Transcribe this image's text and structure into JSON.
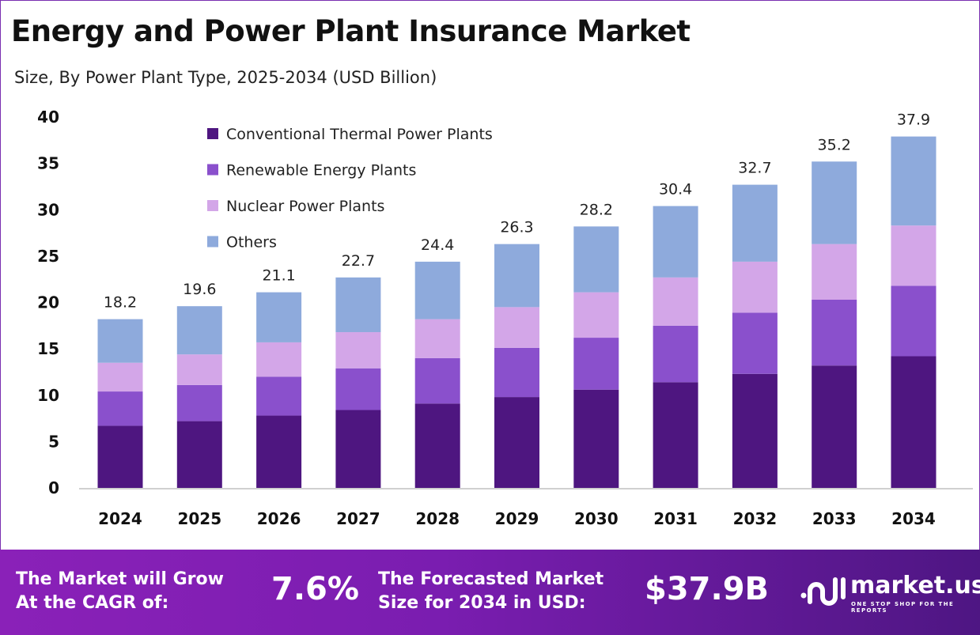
{
  "title": "Energy and Power Plant Insurance Market",
  "subtitle": "Size, By Power Plant Type, 2025-2034 (USD Billion)",
  "chart_data": {
    "type": "bar",
    "stacked": true,
    "categories": [
      "2024",
      "2025",
      "2026",
      "2027",
      "2028",
      "2029",
      "2030",
      "2031",
      "2032",
      "2033",
      "2034"
    ],
    "series": [
      {
        "name": "Conventional Thermal Power Plants",
        "color": "#4e1680",
        "values": [
          6.7,
          7.2,
          7.8,
          8.4,
          9.1,
          9.8,
          10.6,
          11.4,
          12.3,
          13.2,
          14.2
        ]
      },
      {
        "name": "Renewable Energy Plants",
        "color": "#8a50cc",
        "values": [
          3.7,
          3.9,
          4.2,
          4.5,
          4.9,
          5.3,
          5.6,
          6.1,
          6.6,
          7.1,
          7.6
        ]
      },
      {
        "name": "Nuclear Power Plants",
        "color": "#d3a6e8",
        "values": [
          3.1,
          3.3,
          3.7,
          3.9,
          4.2,
          4.4,
          4.9,
          5.2,
          5.5,
          6.0,
          6.5
        ]
      },
      {
        "name": "Others",
        "color": "#8eaadc",
        "values": [
          4.7,
          5.2,
          5.4,
          5.9,
          6.2,
          6.8,
          7.1,
          7.7,
          8.3,
          8.9,
          9.6
        ]
      }
    ],
    "totals": [
      "18.2",
      "19.6",
      "21.1",
      "22.7",
      "24.4",
      "26.3",
      "28.2",
      "30.4",
      "32.7",
      "35.2",
      "37.9"
    ],
    "yticks": [
      "0",
      "5",
      "10",
      "15",
      "20",
      "25",
      "30",
      "35",
      "40"
    ],
    "ylim": [
      0,
      40
    ],
    "grid": false,
    "legend_position": "top-left"
  },
  "banner": {
    "cagr_label": [
      "The Market will Grow",
      "At the CAGR of:"
    ],
    "cagr_value": "7.6%",
    "forecast_label": [
      "The Forecasted Market",
      "Size for 2034 in USD:"
    ],
    "forecast_value": "$37.9B",
    "logo_name": "market.us",
    "logo_tagline": "ONE STOP SHOP FOR THE REPORTS"
  }
}
